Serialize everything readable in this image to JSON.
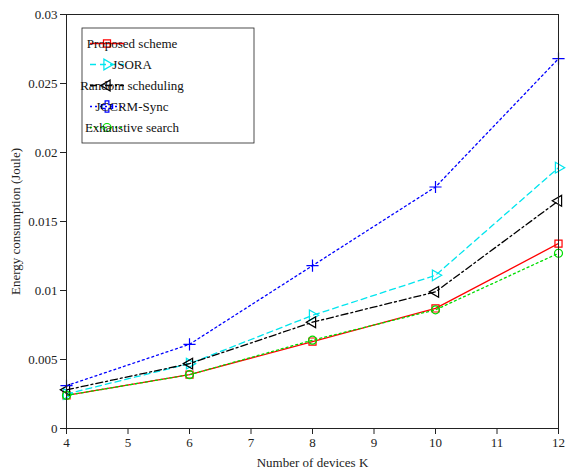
{
  "chart_data": {
    "type": "line",
    "x_label": "Number of devices K",
    "y_label": "Energy consumption (Joule)",
    "x": [
      4,
      6,
      8,
      10,
      12
    ],
    "xlim": [
      4,
      12
    ],
    "xticks": [
      4,
      5,
      6,
      7,
      8,
      9,
      10,
      11,
      12
    ],
    "ylim": [
      0,
      0.03
    ],
    "yticks": [
      0,
      0.005,
      0.01,
      0.015,
      0.02,
      0.025,
      0.03
    ],
    "grid": false,
    "legend": "top-left",
    "series": [
      {
        "name": "Proposed scheme",
        "color": "#ff0000",
        "marker": "square",
        "line_style": "solid",
        "values": [
          0.0024,
          0.0039,
          0.0063,
          0.0087,
          0.0134
        ]
      },
      {
        "name": "JSORA",
        "color": "#00e5ee",
        "marker": "triangle-right",
        "line_style": "dashed",
        "values": [
          0.0025,
          0.0047,
          0.0082,
          0.0111,
          0.0189
        ]
      },
      {
        "name": "Random scheduling",
        "color": "#000000",
        "marker": "triangle-left",
        "line_style": "dashdot",
        "values": [
          0.0028,
          0.0047,
          0.0077,
          0.0099,
          0.0165
        ]
      },
      {
        "name": "JCCRM-Sync",
        "color": "#0000ff",
        "marker": "plus",
        "line_style": "dotted",
        "values": [
          0.0031,
          0.0061,
          0.0118,
          0.0175,
          0.0268
        ]
      },
      {
        "name": "Exhaustive search",
        "color": "#00dd00",
        "marker": "circle",
        "line_style": "dotted",
        "values": [
          0.0024,
          0.0039,
          0.0064,
          0.0086,
          0.0127
        ]
      }
    ]
  }
}
